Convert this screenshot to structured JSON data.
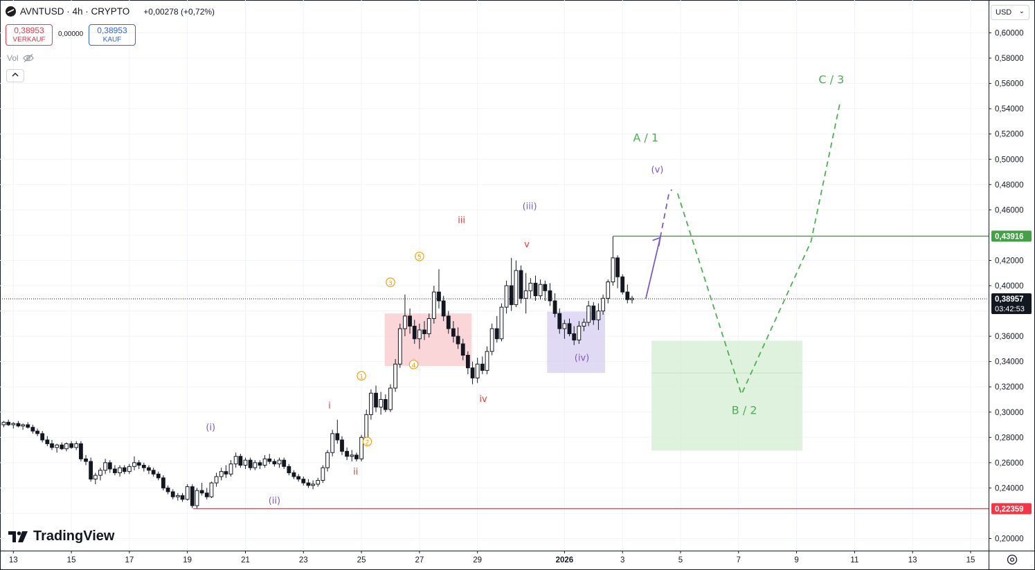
{
  "header": {
    "symbol": "AVNTUSD · 4h · CRYPTO",
    "change": "+0,00278 (+0,72%)"
  },
  "trade": {
    "sell_price": "0,38953",
    "sell_label": "VERKAUF",
    "spread": "0,00000",
    "buy_price": "0,38953",
    "buy_label": "KAUF"
  },
  "vol_label": "Vol",
  "currency": "USD",
  "brand": {
    "name": "TradingView"
  },
  "icons": {
    "symbol": "avnt-logo-icon",
    "eye": "eye-off-icon",
    "collapse": "chevron-up-icon",
    "caret": "chevron-down-icon",
    "settings": "gear-icon"
  },
  "colors": {
    "up": "#131722",
    "down": "#131722",
    "resistance": "#43a047",
    "support": "#f23645",
    "purple": "#7e57c2",
    "orange": "#f59e0b",
    "red_label": "#e53935",
    "green_label": "#4caf50"
  },
  "chart_data": {
    "type": "candlestick",
    "title": "AVNTUSD · 4h · CRYPTO",
    "ylim": [
      0.19,
      0.62
    ],
    "y_ticks": [
      "0,60000",
      "0,58000",
      "0,56000",
      "0,54000",
      "0,52000",
      "0,50000",
      "0,48000",
      "0,46000",
      "0,42000",
      "0,40000",
      "0,36000",
      "0,34000",
      "0,32000",
      "0,30000",
      "0,28000",
      "0,26000",
      "0,24000",
      "0,20000"
    ],
    "x_ticks": [
      "13",
      "15",
      "17",
      "19",
      "21",
      "23",
      "25",
      "27",
      "29",
      "2026",
      "3",
      "5",
      "7",
      "9",
      "11",
      "13",
      "15"
    ],
    "x_tick_days": [
      13,
      15,
      17,
      19,
      21,
      23,
      25,
      27,
      29,
      32,
      34,
      36,
      38,
      40,
      42,
      44,
      46
    ],
    "grid": true,
    "current_price": {
      "value": 0.38957,
      "label": "0,38957",
      "countdown": "03:42:53"
    },
    "levels": [
      {
        "name": "resistance",
        "value": 0.43916,
        "label": "0,43916",
        "color": "#43a047"
      },
      {
        "name": "support",
        "value": 0.22359,
        "label": "0,22359",
        "color": "#f23645"
      }
    ],
    "candles": [
      [
        12.0,
        0.284,
        0.288,
        0.28,
        0.286
      ],
      [
        12.17,
        0.286,
        0.289,
        0.284,
        0.288
      ],
      [
        12.33,
        0.288,
        0.293,
        0.287,
        0.291
      ],
      [
        12.5,
        0.291,
        0.294,
        0.288,
        0.29
      ],
      [
        12.67,
        0.29,
        0.293,
        0.288,
        0.292
      ],
      [
        12.83,
        0.292,
        0.294,
        0.289,
        0.29
      ],
      [
        13.0,
        0.29,
        0.292,
        0.287,
        0.291
      ],
      [
        13.17,
        0.291,
        0.293,
        0.288,
        0.289
      ],
      [
        13.33,
        0.289,
        0.291,
        0.286,
        0.29
      ],
      [
        13.5,
        0.29,
        0.292,
        0.287,
        0.288
      ],
      [
        13.67,
        0.288,
        0.29,
        0.283,
        0.285
      ],
      [
        13.83,
        0.285,
        0.287,
        0.281,
        0.283
      ],
      [
        14.0,
        0.283,
        0.285,
        0.276,
        0.278
      ],
      [
        14.17,
        0.278,
        0.281,
        0.273,
        0.275
      ],
      [
        14.33,
        0.275,
        0.278,
        0.27,
        0.272
      ],
      [
        14.5,
        0.272,
        0.275,
        0.268,
        0.274
      ],
      [
        14.67,
        0.274,
        0.276,
        0.27,
        0.271
      ],
      [
        14.83,
        0.271,
        0.276,
        0.269,
        0.275
      ],
      [
        15.0,
        0.275,
        0.277,
        0.271,
        0.272
      ],
      [
        15.17,
        0.272,
        0.277,
        0.27,
        0.275
      ],
      [
        15.33,
        0.275,
        0.277,
        0.261,
        0.263
      ],
      [
        15.5,
        0.263,
        0.266,
        0.258,
        0.261
      ],
      [
        15.67,
        0.261,
        0.264,
        0.245,
        0.247
      ],
      [
        15.83,
        0.247,
        0.252,
        0.243,
        0.25
      ],
      [
        16.0,
        0.25,
        0.256,
        0.246,
        0.254
      ],
      [
        16.17,
        0.254,
        0.263,
        0.251,
        0.26
      ],
      [
        16.33,
        0.26,
        0.262,
        0.252,
        0.255
      ],
      [
        16.5,
        0.255,
        0.258,
        0.25,
        0.252
      ],
      [
        16.67,
        0.252,
        0.258,
        0.249,
        0.256
      ],
      [
        16.83,
        0.256,
        0.258,
        0.251,
        0.253
      ],
      [
        17.0,
        0.253,
        0.259,
        0.251,
        0.257
      ],
      [
        17.17,
        0.257,
        0.265,
        0.254,
        0.26
      ],
      [
        17.33,
        0.26,
        0.262,
        0.255,
        0.258
      ],
      [
        17.5,
        0.258,
        0.26,
        0.253,
        0.256
      ],
      [
        17.67,
        0.256,
        0.258,
        0.251,
        0.254
      ],
      [
        17.83,
        0.254,
        0.256,
        0.249,
        0.251
      ],
      [
        18.0,
        0.251,
        0.253,
        0.246,
        0.248
      ],
      [
        18.17,
        0.248,
        0.25,
        0.238,
        0.24
      ],
      [
        18.33,
        0.24,
        0.242,
        0.235,
        0.237
      ],
      [
        18.5,
        0.237,
        0.239,
        0.231,
        0.233
      ],
      [
        18.67,
        0.233,
        0.236,
        0.23,
        0.234
      ],
      [
        18.83,
        0.234,
        0.236,
        0.229,
        0.231
      ],
      [
        19.0,
        0.231,
        0.243,
        0.23,
        0.241
      ],
      [
        19.17,
        0.241,
        0.243,
        0.224,
        0.226
      ],
      [
        19.33,
        0.226,
        0.24,
        0.224,
        0.238
      ],
      [
        19.5,
        0.238,
        0.244,
        0.234,
        0.236
      ],
      [
        19.67,
        0.236,
        0.24,
        0.231,
        0.233
      ],
      [
        19.83,
        0.233,
        0.245,
        0.232,
        0.244
      ],
      [
        20.0,
        0.244,
        0.252,
        0.241,
        0.249
      ],
      [
        20.17,
        0.249,
        0.256,
        0.246,
        0.253
      ],
      [
        20.33,
        0.253,
        0.258,
        0.248,
        0.251
      ],
      [
        20.5,
        0.251,
        0.262,
        0.249,
        0.259
      ],
      [
        20.67,
        0.259,
        0.268,
        0.256,
        0.265
      ],
      [
        20.83,
        0.265,
        0.267,
        0.256,
        0.258
      ],
      [
        21.0,
        0.258,
        0.264,
        0.255,
        0.262
      ],
      [
        21.17,
        0.262,
        0.264,
        0.254,
        0.256
      ],
      [
        21.33,
        0.256,
        0.262,
        0.254,
        0.26
      ],
      [
        21.5,
        0.26,
        0.262,
        0.255,
        0.258
      ],
      [
        21.67,
        0.258,
        0.266,
        0.256,
        0.263
      ],
      [
        21.83,
        0.263,
        0.267,
        0.259,
        0.261
      ],
      [
        22.0,
        0.261,
        0.263,
        0.257,
        0.259
      ],
      [
        22.17,
        0.259,
        0.264,
        0.256,
        0.262
      ],
      [
        22.33,
        0.262,
        0.264,
        0.255,
        0.257
      ],
      [
        22.5,
        0.257,
        0.259,
        0.25,
        0.252
      ],
      [
        22.67,
        0.252,
        0.254,
        0.247,
        0.249
      ],
      [
        22.83,
        0.249,
        0.251,
        0.245,
        0.247
      ],
      [
        23.0,
        0.247,
        0.249,
        0.242,
        0.244
      ],
      [
        23.17,
        0.244,
        0.247,
        0.24,
        0.242
      ],
      [
        23.33,
        0.242,
        0.246,
        0.239,
        0.243
      ],
      [
        23.5,
        0.243,
        0.248,
        0.241,
        0.246
      ],
      [
        23.67,
        0.246,
        0.258,
        0.244,
        0.256
      ],
      [
        23.83,
        0.256,
        0.27,
        0.253,
        0.268
      ],
      [
        24.0,
        0.268,
        0.286,
        0.265,
        0.283
      ],
      [
        24.17,
        0.283,
        0.294,
        0.275,
        0.278
      ],
      [
        24.33,
        0.278,
        0.281,
        0.266,
        0.269
      ],
      [
        24.5,
        0.269,
        0.272,
        0.262,
        0.265
      ],
      [
        24.67,
        0.265,
        0.27,
        0.261,
        0.266
      ],
      [
        24.83,
        0.266,
        0.268,
        0.261,
        0.263
      ],
      [
        25.0,
        0.263,
        0.282,
        0.261,
        0.28
      ],
      [
        25.17,
        0.28,
        0.302,
        0.277,
        0.298
      ],
      [
        25.33,
        0.298,
        0.318,
        0.294,
        0.315
      ],
      [
        25.5,
        0.315,
        0.321,
        0.3,
        0.304
      ],
      [
        25.67,
        0.304,
        0.316,
        0.298,
        0.31
      ],
      [
        25.83,
        0.31,
        0.314,
        0.3,
        0.302
      ],
      [
        26.0,
        0.302,
        0.322,
        0.3,
        0.319
      ],
      [
        26.17,
        0.319,
        0.342,
        0.316,
        0.338
      ],
      [
        26.33,
        0.338,
        0.37,
        0.335,
        0.366
      ],
      [
        26.5,
        0.366,
        0.393,
        0.36,
        0.376
      ],
      [
        26.67,
        0.376,
        0.382,
        0.362,
        0.368
      ],
      [
        26.83,
        0.368,
        0.373,
        0.354,
        0.358
      ],
      [
        27.0,
        0.358,
        0.37,
        0.35,
        0.365
      ],
      [
        27.17,
        0.365,
        0.372,
        0.357,
        0.362
      ],
      [
        27.33,
        0.362,
        0.378,
        0.359,
        0.374
      ],
      [
        27.5,
        0.374,
        0.4,
        0.37,
        0.395
      ],
      [
        27.67,
        0.395,
        0.413,
        0.382,
        0.388
      ],
      [
        27.83,
        0.388,
        0.392,
        0.372,
        0.376
      ],
      [
        28.0,
        0.376,
        0.38,
        0.362,
        0.366
      ],
      [
        28.17,
        0.366,
        0.372,
        0.355,
        0.36
      ],
      [
        28.33,
        0.36,
        0.367,
        0.35,
        0.354
      ],
      [
        28.5,
        0.354,
        0.358,
        0.341,
        0.345
      ],
      [
        28.67,
        0.345,
        0.348,
        0.33,
        0.335
      ],
      [
        28.83,
        0.335,
        0.34,
        0.322,
        0.327
      ],
      [
        29.0,
        0.327,
        0.343,
        0.323,
        0.338
      ],
      [
        29.17,
        0.338,
        0.344,
        0.33,
        0.333
      ],
      [
        29.33,
        0.333,
        0.352,
        0.33,
        0.348
      ],
      [
        29.5,
        0.348,
        0.37,
        0.345,
        0.366
      ],
      [
        29.67,
        0.366,
        0.376,
        0.355,
        0.358
      ],
      [
        29.83,
        0.358,
        0.386,
        0.356,
        0.383
      ],
      [
        30.0,
        0.383,
        0.404,
        0.378,
        0.4
      ],
      [
        30.17,
        0.4,
        0.422,
        0.38,
        0.385
      ],
      [
        30.33,
        0.385,
        0.42,
        0.383,
        0.412
      ],
      [
        30.5,
        0.412,
        0.416,
        0.386,
        0.39
      ],
      [
        30.67,
        0.39,
        0.41,
        0.378,
        0.396
      ],
      [
        30.83,
        0.396,
        0.406,
        0.39,
        0.402
      ],
      [
        31.0,
        0.402,
        0.408,
        0.388,
        0.392
      ],
      [
        31.17,
        0.392,
        0.405,
        0.389,
        0.401
      ],
      [
        31.33,
        0.401,
        0.404,
        0.388,
        0.396
      ],
      [
        31.5,
        0.396,
        0.402,
        0.384,
        0.388
      ],
      [
        31.67,
        0.388,
        0.394,
        0.375,
        0.378
      ],
      [
        31.83,
        0.378,
        0.382,
        0.362,
        0.366
      ],
      [
        32.0,
        0.366,
        0.373,
        0.358,
        0.37
      ],
      [
        32.17,
        0.37,
        0.374,
        0.36,
        0.362
      ],
      [
        32.33,
        0.362,
        0.368,
        0.353,
        0.357
      ],
      [
        32.5,
        0.357,
        0.372,
        0.354,
        0.368
      ],
      [
        32.67,
        0.368,
        0.374,
        0.364,
        0.371
      ],
      [
        32.83,
        0.371,
        0.388,
        0.368,
        0.384
      ],
      [
        33.0,
        0.384,
        0.387,
        0.369,
        0.373
      ],
      [
        33.17,
        0.373,
        0.386,
        0.365,
        0.38
      ],
      [
        33.33,
        0.38,
        0.393,
        0.377,
        0.39
      ],
      [
        33.5,
        0.39,
        0.405,
        0.386,
        0.403
      ],
      [
        33.67,
        0.403,
        0.439,
        0.4,
        0.422
      ],
      [
        33.83,
        0.422,
        0.424,
        0.398,
        0.407
      ],
      [
        34.0,
        0.407,
        0.409,
        0.393,
        0.395
      ],
      [
        34.17,
        0.395,
        0.401,
        0.386,
        0.389
      ],
      [
        34.33,
        0.389,
        0.392,
        0.386,
        0.39
      ]
    ],
    "zones": [
      {
        "name": "red-zone",
        "x": [
          25.8,
          28.8
        ],
        "y": [
          0.3365,
          0.378
        ],
        "color": "#f8c8cc"
      },
      {
        "name": "purple-zone",
        "x": [
          31.4,
          33.4
        ],
        "y": [
          0.331,
          0.3795
        ],
        "color": "#d6cdf0"
      },
      {
        "name": "green-zone",
        "x": [
          35.0,
          40.2
        ],
        "y": [
          0.2695,
          0.3565
        ],
        "color": "#d4edd2"
      }
    ],
    "annotations": [
      {
        "text": "(i)",
        "day": 19.8,
        "y": 0.2855,
        "color": "purple"
      },
      {
        "text": "(ii)",
        "day": 22.0,
        "y": 0.2275,
        "color": "purple"
      },
      {
        "text": "i",
        "day": 23.9,
        "y": 0.303,
        "color": "red"
      },
      {
        "text": "ii",
        "day": 24.8,
        "y": 0.2505,
        "color": "red"
      },
      {
        "text": "(iii)",
        "day": 30.8,
        "y": 0.4605,
        "color": "purple"
      },
      {
        "text": "iii",
        "day": 28.45,
        "y": 0.4495,
        "color": "red"
      },
      {
        "text": "v",
        "day": 30.7,
        "y": 0.4305,
        "color": "red"
      },
      {
        "text": "iv",
        "day": 29.2,
        "y": 0.308,
        "color": "red"
      },
      {
        "text": "(iv)",
        "day": 32.6,
        "y": 0.3405,
        "color": "purple"
      },
      {
        "text": "(v)",
        "day": 35.2,
        "y": 0.4895,
        "color": "purple"
      },
      {
        "text": "A / 1",
        "day": 34.8,
        "y": 0.514,
        "color": "green"
      },
      {
        "text": "B / 2",
        "day": 38.2,
        "y": 0.2985,
        "color": "green"
      },
      {
        "text": "C / 3",
        "day": 41.2,
        "y": 0.56,
        "color": "green"
      }
    ],
    "circle_labels": [
      {
        "text": "①",
        "day": 25.0,
        "y": 0.3265
      },
      {
        "text": "②",
        "day": 25.2,
        "y": 0.2745
      },
      {
        "text": "③",
        "day": 26.0,
        "y": 0.4005
      },
      {
        "text": "④",
        "day": 26.8,
        "y": 0.3355
      },
      {
        "text": "⑤",
        "day": 27.0,
        "y": 0.421
      }
    ],
    "arrows": [
      {
        "name": "purple-solid-arrow",
        "style": "solid",
        "color": "purple",
        "points": [
          [
            34.8,
            0.3895
          ],
          [
            35.3,
            0.438
          ]
        ]
      },
      {
        "name": "purple-dashed-arrow",
        "style": "dashed",
        "color": "purple",
        "points": [
          [
            35.3,
            0.438
          ],
          [
            35.6,
            0.473
          ],
          [
            35.7,
            0.476
          ]
        ]
      },
      {
        "name": "green-wave-path",
        "style": "dashed",
        "color": "green",
        "points": [
          [
            35.9,
            0.473
          ],
          [
            38.1,
            0.314
          ],
          [
            40.5,
            0.435
          ],
          [
            41.5,
            0.545
          ]
        ]
      }
    ]
  }
}
